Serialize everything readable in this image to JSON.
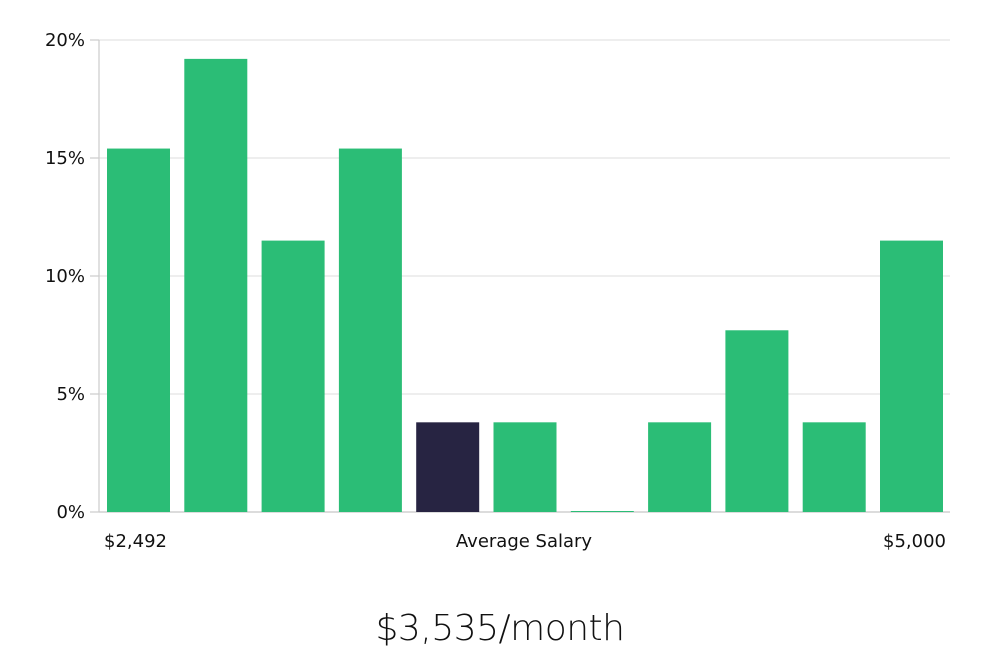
{
  "chart_data": {
    "type": "bar",
    "title": "",
    "xlabel": "Average Salary",
    "ylabel": "",
    "x_range_labels": {
      "min": "$2,492",
      "max": "$5,000"
    },
    "categories": [
      "bin 1",
      "bin 2",
      "bin 3",
      "bin 4",
      "bin 5",
      "bin 6",
      "bin 7",
      "bin 8",
      "bin 9",
      "bin 10",
      "bin 11"
    ],
    "values": [
      15.4,
      19.2,
      11.5,
      15.4,
      3.8,
      3.8,
      0.04,
      3.8,
      7.7,
      3.8,
      11.5
    ],
    "highlight_index": 4,
    "highlight_note": "bin containing the average salary",
    "ylim": [
      0,
      20
    ],
    "yticks": [
      0,
      5,
      10,
      15,
      20
    ],
    "ytick_labels": [
      "0%",
      "5%",
      "10%",
      "15%",
      "20%"
    ],
    "grid": true,
    "legend": null,
    "colors": {
      "bar": "#2bbd76",
      "highlight": "#272442",
      "grid": "#e3e3e3",
      "axis": "#cccccc"
    }
  },
  "summary": {
    "average_salary": "$3,535/month"
  }
}
